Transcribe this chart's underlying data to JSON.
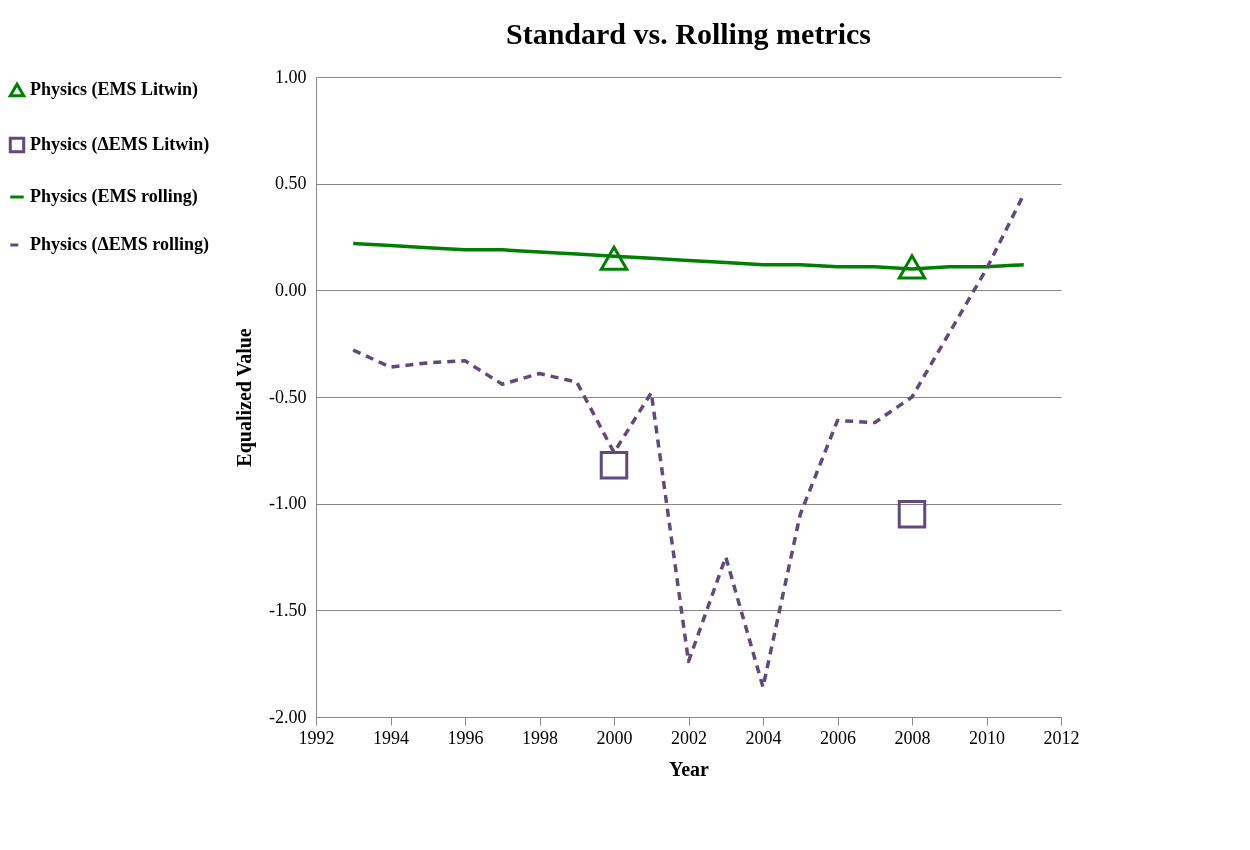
{
  "chart_data": {
    "type": "line",
    "title": "Standard vs. Rolling metrics",
    "xlabel": "Year",
    "ylabel": "Equalized Value",
    "x": [
      1993,
      1994,
      1995,
      1996,
      1997,
      1998,
      1999,
      2000,
      2001,
      2002,
      2003,
      2004,
      2005,
      2006,
      2007,
      2008,
      2009,
      2010,
      2011
    ],
    "series": [
      {
        "name": "Physics (EMS Litwin)",
        "type": "scatter",
        "marker": "triangle",
        "color": "#008000",
        "values": [
          null,
          null,
          null,
          null,
          null,
          null,
          null,
          0.15,
          null,
          null,
          null,
          null,
          null,
          null,
          null,
          0.11,
          null,
          null,
          null
        ]
      },
      {
        "name": "Physics (ΔEMS Litwin)",
        "type": "scatter",
        "marker": "square",
        "color": "#604a7b",
        "values": [
          null,
          null,
          null,
          null,
          null,
          null,
          null,
          -0.82,
          null,
          null,
          null,
          null,
          null,
          null,
          null,
          -1.05,
          null,
          null,
          null
        ]
      },
      {
        "name": "Physics (EMS rolling)",
        "type": "line",
        "line_style": "solid",
        "color": "#008000",
        "values": [
          0.22,
          0.21,
          0.2,
          0.19,
          0.19,
          0.18,
          0.17,
          0.16,
          0.15,
          0.14,
          0.13,
          0.12,
          0.12,
          0.11,
          0.11,
          0.1,
          0.11,
          0.11,
          0.12
        ]
      },
      {
        "name": "Physics (ΔEMS rolling)",
        "type": "line",
        "line_style": "dashed",
        "color": "#604a7b",
        "values": [
          -0.28,
          -0.36,
          -0.34,
          -0.33,
          -0.44,
          -0.39,
          -0.43,
          -0.76,
          -0.48,
          -1.74,
          -1.25,
          -1.86,
          -1.05,
          -0.61,
          -0.62,
          -0.5,
          -0.2,
          0.1,
          0.45
        ]
      }
    ],
    "xlim": [
      1992,
      2012
    ],
    "xticks": [
      1992,
      1994,
      1996,
      1998,
      2000,
      2002,
      2004,
      2006,
      2008,
      2010,
      2012
    ],
    "ylim": [
      -2,
      1
    ],
    "yticks": [
      {
        "value": 1,
        "label": "1.00"
      },
      {
        "value": 0.5,
        "label": "0.50"
      },
      {
        "value": 0,
        "label": "0.00"
      },
      {
        "value": -0.5,
        "label": "-0.50"
      },
      {
        "value": -1,
        "label": "-1.00"
      },
      {
        "value": -1.5,
        "label": "-1.50"
      },
      {
        "value": -2,
        "label": "-2.00"
      }
    ],
    "grid": "y",
    "legend": "left"
  }
}
